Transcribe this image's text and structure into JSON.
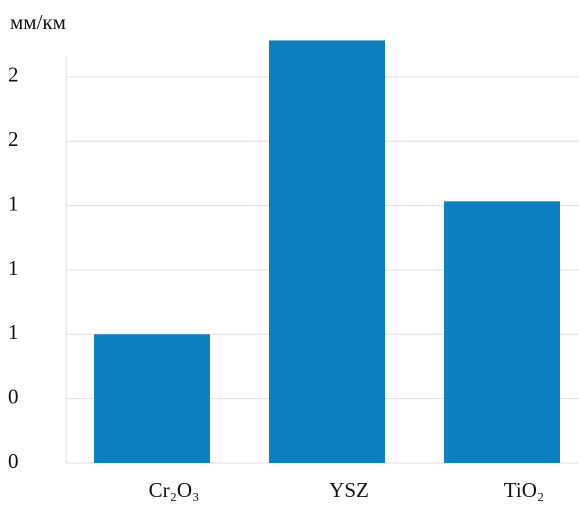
{
  "chart_data": {
    "type": "bar",
    "y_label": "мм/км",
    "categories": [
      "Cr₂O₃",
      "YSZ",
      "TiO₂"
    ],
    "values": [
      0.6,
      1.97,
      1.22
    ],
    "color": "#0e80c0",
    "ylim": [
      0,
      2.0
    ],
    "yticks": [
      0,
      {
        "value": 0.3,
        "label": "0"
      },
      {
        "value": 0.6,
        "label": "1"
      },
      {
        "value": 0.9,
        "label": "1"
      },
      {
        "value": 1.2,
        "label": "1"
      },
      {
        "value": 1.5,
        "label": "2"
      },
      {
        "value": 1.8,
        "label": "2"
      }
    ],
    "grid": true
  }
}
